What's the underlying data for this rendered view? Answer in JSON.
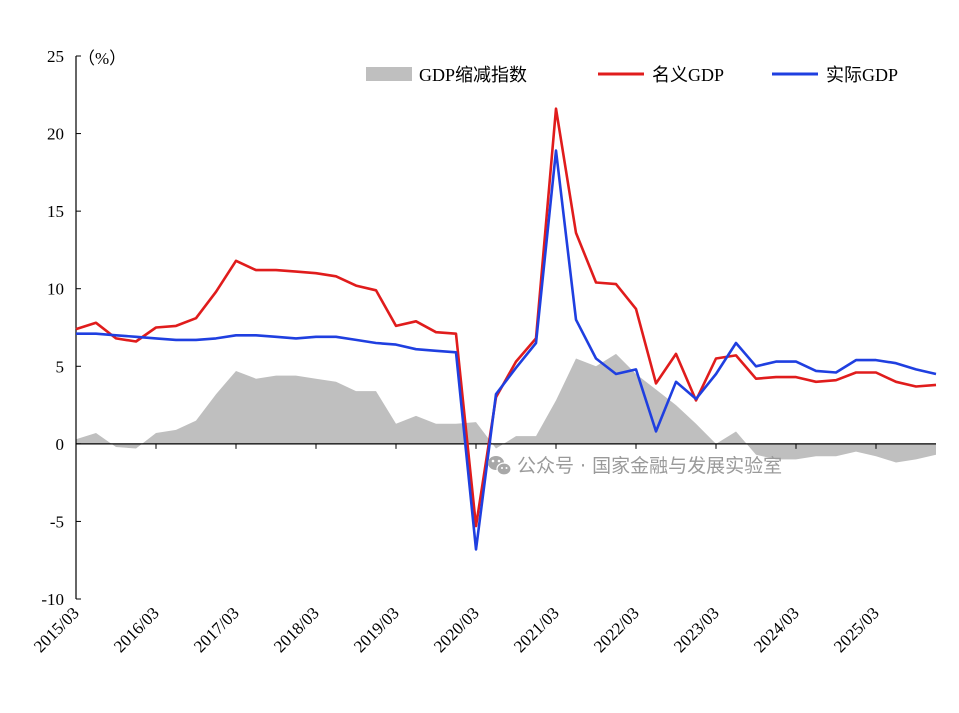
{
  "chart_data": {
    "type": "line",
    "title": "",
    "ylabel": "（%）",
    "xlabel": "",
    "ylim": [
      -10,
      25
    ],
    "y_ticks": [
      25,
      20,
      15,
      10,
      5,
      0,
      -5,
      -10
    ],
    "x_tick_labels": [
      "2015/03",
      "2016/03",
      "2017/03",
      "2018/03",
      "2019/03",
      "2020/03",
      "2021/03",
      "2022/03",
      "2023/03",
      "2024/03",
      "2025/03"
    ],
    "categories": [
      "2015Q1",
      "2015Q2",
      "2015Q3",
      "2015Q4",
      "2016Q1",
      "2016Q2",
      "2016Q3",
      "2016Q4",
      "2017Q1",
      "2017Q2",
      "2017Q3",
      "2017Q4",
      "2018Q1",
      "2018Q2",
      "2018Q3",
      "2018Q4",
      "2019Q1",
      "2019Q2",
      "2019Q3",
      "2019Q4",
      "2020Q1",
      "2020Q2",
      "2020Q3",
      "2020Q4",
      "2021Q1",
      "2021Q2",
      "2021Q3",
      "2021Q4",
      "2022Q1",
      "2022Q2",
      "2022Q3",
      "2022Q4",
      "2023Q1",
      "2023Q2",
      "2023Q3",
      "2023Q4",
      "2024Q1",
      "2024Q2",
      "2024Q3",
      "2024Q4",
      "2025Q1",
      "2025Q2",
      "2025Q3",
      "2025Q4"
    ],
    "series": [
      {
        "name": "GDP缩减指数",
        "type": "area",
        "color": "#bfbfbf",
        "values": [
          0.3,
          0.7,
          -0.2,
          -0.3,
          0.7,
          0.9,
          1.5,
          3.2,
          4.7,
          4.2,
          4.4,
          4.4,
          4.2,
          4.0,
          3.4,
          3.4,
          1.3,
          1.8,
          1.3,
          1.3,
          1.4,
          -0.3,
          0.5,
          0.5,
          2.8,
          5.5,
          5.0,
          5.8,
          4.5,
          3.5,
          2.5,
          1.3,
          0.0,
          0.8,
          -0.7,
          -1.0,
          -1.0,
          -0.8,
          -0.8,
          -0.5,
          -0.8,
          -1.2,
          -1.0,
          -0.7
        ]
      },
      {
        "name": "名义GDP",
        "type": "line",
        "color": "#e01c1c",
        "values": [
          7.4,
          7.8,
          6.8,
          6.6,
          7.5,
          7.6,
          8.1,
          9.8,
          11.8,
          11.2,
          11.2,
          11.1,
          11.0,
          10.8,
          10.2,
          9.9,
          7.6,
          7.9,
          7.2,
          7.1,
          -5.3,
          3.0,
          5.3,
          6.8,
          21.6,
          13.6,
          10.4,
          10.3,
          8.7,
          3.9,
          5.8,
          2.8,
          5.5,
          5.7,
          4.2,
          4.3,
          4.3,
          4.0,
          4.1,
          4.6,
          4.6,
          4.0,
          3.7,
          3.8
        ]
      },
      {
        "name": "实际GDP",
        "type": "line",
        "color": "#1f3fe0",
        "values": [
          7.1,
          7.1,
          7.0,
          6.9,
          6.8,
          6.7,
          6.7,
          6.8,
          7.0,
          7.0,
          6.9,
          6.8,
          6.9,
          6.9,
          6.7,
          6.5,
          6.4,
          6.1,
          6.0,
          5.9,
          -6.8,
          3.2,
          4.9,
          6.5,
          18.9,
          8.0,
          5.5,
          4.5,
          4.8,
          0.8,
          4.0,
          2.9,
          4.5,
          6.5,
          5.0,
          5.3,
          5.3,
          4.7,
          4.6,
          5.4,
          5.4,
          5.2,
          4.8,
          4.5
        ]
      }
    ],
    "legend": {
      "position": "top-right",
      "items": [
        "GDP缩减指数",
        "名义GDP",
        "实际GDP"
      ]
    },
    "grid": false
  },
  "watermark": {
    "icon": "wechat-icon",
    "text": "公众号 · 国家金融与发展实验室"
  }
}
